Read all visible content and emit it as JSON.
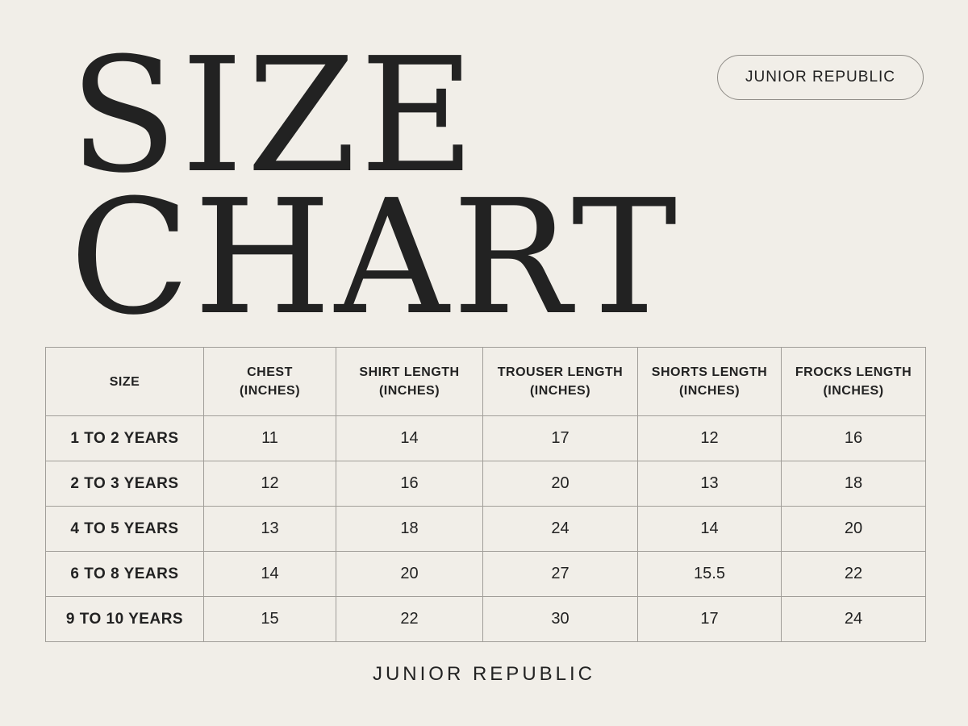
{
  "title": {
    "line1": "SIZE",
    "line2": "CHART"
  },
  "brand_badge": "JUNIOR REPUBLIC",
  "table": {
    "headers": [
      {
        "line1": "SIZE",
        "line2": ""
      },
      {
        "line1": "CHEST",
        "line2": "(INCHES)"
      },
      {
        "line1": "SHIRT LENGTH",
        "line2": "(INCHES)"
      },
      {
        "line1": "TROUSER LENGTH",
        "line2": "(INCHES)"
      },
      {
        "line1": "SHORTS LENGTH",
        "line2": "(INCHES)"
      },
      {
        "line1": "FROCKS LENGTH",
        "line2": "(INCHES)"
      }
    ],
    "rows": [
      [
        "1 TO 2 YEARS",
        "11",
        "14",
        "17",
        "12",
        "16"
      ],
      [
        "2 TO 3 YEARS",
        "12",
        "16",
        "20",
        "13",
        "18"
      ],
      [
        "4 TO 5 YEARS",
        "13",
        "18",
        "24",
        "14",
        "20"
      ],
      [
        "6 TO 8 YEARS",
        "14",
        "20",
        "27",
        "15.5",
        "22"
      ],
      [
        "9 TO 10 YEARS",
        "15",
        "22",
        "30",
        "17",
        "24"
      ]
    ]
  },
  "footer_brand": "JUNIOR REPUBLIC"
}
